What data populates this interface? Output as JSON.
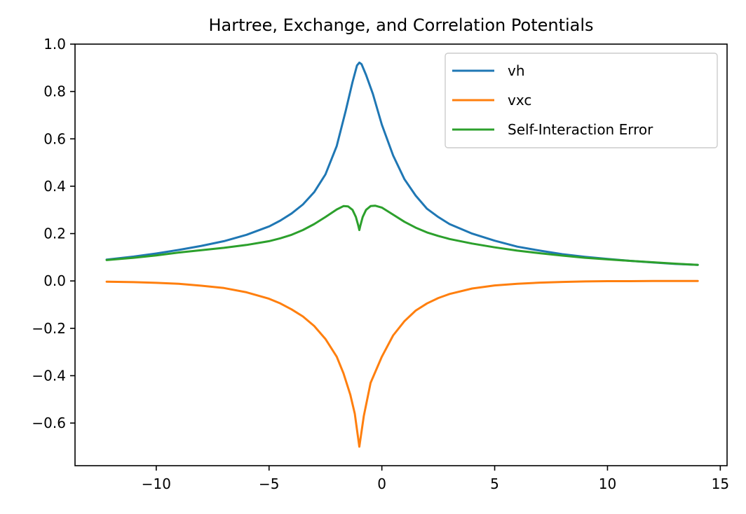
{
  "chart_data": {
    "type": "line",
    "title": "Hartree, Exchange, and Correlation Potentials",
    "xlabel": "",
    "ylabel": "",
    "xlim": [
      -13.6,
      15.3
    ],
    "ylim": [
      -0.78,
      1.0
    ],
    "xticks": [
      -10,
      -5,
      0,
      5,
      10,
      15
    ],
    "xtick_labels": [
      "−10",
      "−5",
      "0",
      "5",
      "10",
      "15"
    ],
    "yticks": [
      -0.6,
      -0.4,
      -0.2,
      0.0,
      0.2,
      0.4,
      0.6,
      0.8,
      1.0
    ],
    "ytick_labels": [
      "−0.6",
      "−0.4",
      "−0.2",
      "0.0",
      "0.2",
      "0.4",
      "0.6",
      "0.8",
      "1.0"
    ],
    "grid": false,
    "legend_position": "top-right",
    "series": [
      {
        "name": "vh",
        "color": "#1f77b4",
        "x": [
          -12.2,
          -11,
          -10,
          -9,
          -8,
          -7,
          -6,
          -5,
          -4.5,
          -4,
          -3.5,
          -3,
          -2.5,
          -2,
          -1.6,
          -1.3,
          -1.1,
          -1.0,
          -0.9,
          -0.7,
          -0.4,
          0,
          0.5,
          1,
          1.5,
          2,
          2.5,
          3,
          4,
          5,
          6,
          7,
          8,
          9,
          10,
          11,
          12,
          13,
          14
        ],
        "y": [
          0.09,
          0.103,
          0.116,
          0.131,
          0.148,
          0.168,
          0.195,
          0.23,
          0.255,
          0.285,
          0.323,
          0.375,
          0.45,
          0.57,
          0.72,
          0.84,
          0.91,
          0.922,
          0.915,
          0.87,
          0.79,
          0.66,
          0.53,
          0.43,
          0.36,
          0.305,
          0.27,
          0.24,
          0.2,
          0.17,
          0.145,
          0.128,
          0.113,
          0.102,
          0.093,
          0.085,
          0.078,
          0.072,
          0.068
        ]
      },
      {
        "name": "vxc",
        "color": "#ff7f0e",
        "x": [
          -12.2,
          -11,
          -10,
          -9,
          -8,
          -7,
          -6,
          -5,
          -4.5,
          -4,
          -3.5,
          -3,
          -2.5,
          -2,
          -1.7,
          -1.4,
          -1.2,
          -1.0,
          -0.8,
          -0.5,
          0,
          0.5,
          1,
          1.5,
          2,
          2.5,
          3,
          4,
          5,
          6,
          7,
          8,
          9,
          10,
          11,
          12,
          13,
          14
        ],
        "y": [
          -0.003,
          -0.005,
          -0.008,
          -0.012,
          -0.02,
          -0.03,
          -0.048,
          -0.075,
          -0.095,
          -0.12,
          -0.15,
          -0.19,
          -0.245,
          -0.32,
          -0.39,
          -0.48,
          -0.56,
          -0.7,
          -0.57,
          -0.43,
          -0.32,
          -0.23,
          -0.17,
          -0.125,
          -0.095,
          -0.072,
          -0.055,
          -0.032,
          -0.019,
          -0.012,
          -0.007,
          -0.004,
          -0.002,
          -0.001,
          -0.001,
          0.0,
          0.0,
          0.0
        ]
      },
      {
        "name": "Self-Interaction Error",
        "color": "#2ca02c",
        "x": [
          -12.2,
          -11,
          -10,
          -9,
          -8,
          -7,
          -6,
          -5,
          -4.5,
          -4,
          -3.5,
          -3,
          -2.5,
          -2,
          -1.7,
          -1.5,
          -1.3,
          -1.15,
          -1.05,
          -1.0,
          -0.95,
          -0.85,
          -0.7,
          -0.5,
          -0.3,
          0,
          0.5,
          1,
          1.5,
          2,
          2.5,
          3,
          4,
          5,
          6,
          7,
          8,
          9,
          10,
          11,
          12,
          13,
          14
        ],
        "y": [
          0.088,
          0.098,
          0.108,
          0.12,
          0.13,
          0.14,
          0.152,
          0.168,
          0.18,
          0.195,
          0.215,
          0.24,
          0.27,
          0.302,
          0.316,
          0.315,
          0.3,
          0.27,
          0.235,
          0.215,
          0.235,
          0.27,
          0.3,
          0.316,
          0.318,
          0.31,
          0.28,
          0.25,
          0.225,
          0.205,
          0.19,
          0.177,
          0.158,
          0.142,
          0.128,
          0.117,
          0.107,
          0.098,
          0.091,
          0.085,
          0.079,
          0.073,
          0.068
        ]
      }
    ]
  }
}
